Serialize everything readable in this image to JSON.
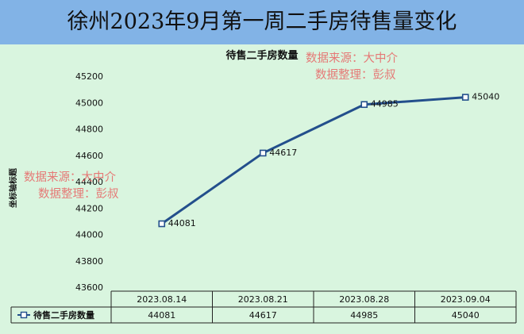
{
  "header": {
    "title": "徐州2023年9月第一周二手房待售量变化"
  },
  "watermark": {
    "line1": "数据来源：大中介",
    "line2": "数据整理：彭叔"
  },
  "colors": {
    "banner": "#82b3e6",
    "panel": "#d9f5df",
    "series": "#234f8c",
    "watermark": "#e86464"
  },
  "chart_data": {
    "type": "line",
    "title": "待售二手房数量",
    "ylabel": "坐标轴标题",
    "xlabel": "",
    "ylim": [
      43600,
      45200
    ],
    "ytick_step": 200,
    "yticks": [
      "43600",
      "43800",
      "44000",
      "44200",
      "44400",
      "44600",
      "44800",
      "45000",
      "45200"
    ],
    "grid": false,
    "legend": "table-row-left",
    "categories": [
      "2023.08.14",
      "2023.08.21",
      "2023.08.28",
      "2023.09.04"
    ],
    "series": [
      {
        "name": "待售二手房数量",
        "values": [
          44081,
          44617,
          44985,
          45040
        ],
        "labels": [
          "44081",
          "44617",
          "44985",
          "45040"
        ],
        "marker": "square"
      }
    ],
    "data_table": true
  }
}
